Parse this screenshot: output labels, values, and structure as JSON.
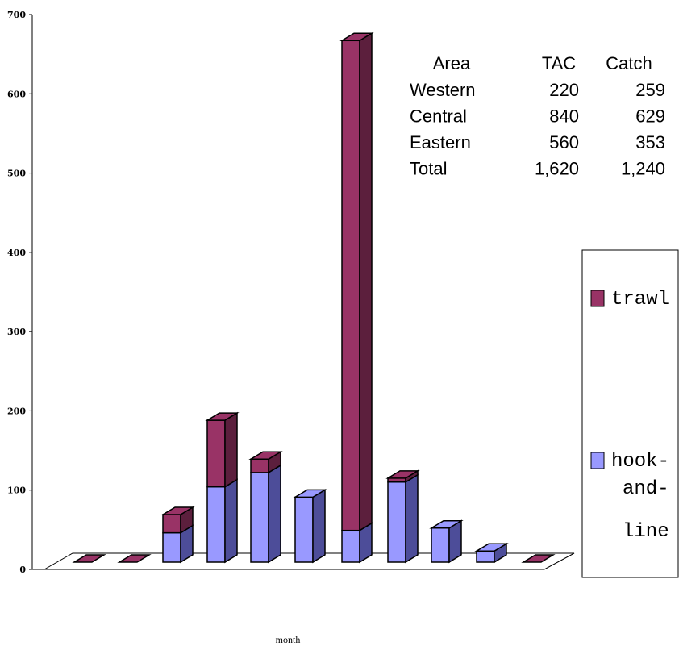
{
  "chart_data": {
    "type": "bar",
    "stacked": true,
    "three_d": true,
    "xlabel": "month",
    "ylabel": "",
    "ylim": [
      0,
      700
    ],
    "yticks": [
      0,
      100,
      200,
      300,
      400,
      500,
      600,
      700
    ],
    "categories": [
      "",
      "",
      "",
      "",
      "",
      "",
      "",
      "",
      "",
      "",
      ""
    ],
    "series": [
      {
        "name": "hook-and-line",
        "color": "#9999ff",
        "values": [
          0,
          0,
          37,
          95,
          113,
          82,
          40,
          101,
          43,
          14,
          0
        ]
      },
      {
        "name": "trawl",
        "color": "#993366",
        "values": [
          0,
          0,
          23,
          84,
          17,
          0,
          618,
          5,
          0,
          0,
          0
        ]
      }
    ],
    "legend_position": "right",
    "grid": false,
    "table": {
      "headers": [
        "Area",
        "TAC",
        "Catch"
      ],
      "rows": [
        [
          "Western",
          "220",
          "259"
        ],
        [
          "Central",
          "840",
          "629"
        ],
        [
          "Eastern",
          "560",
          "353"
        ],
        [
          "Total",
          "1,620",
          "1,240"
        ]
      ]
    }
  },
  "legend": {
    "trawl_label": "trawl",
    "hook_lines": [
      "hook-",
      "and-",
      "line"
    ]
  }
}
